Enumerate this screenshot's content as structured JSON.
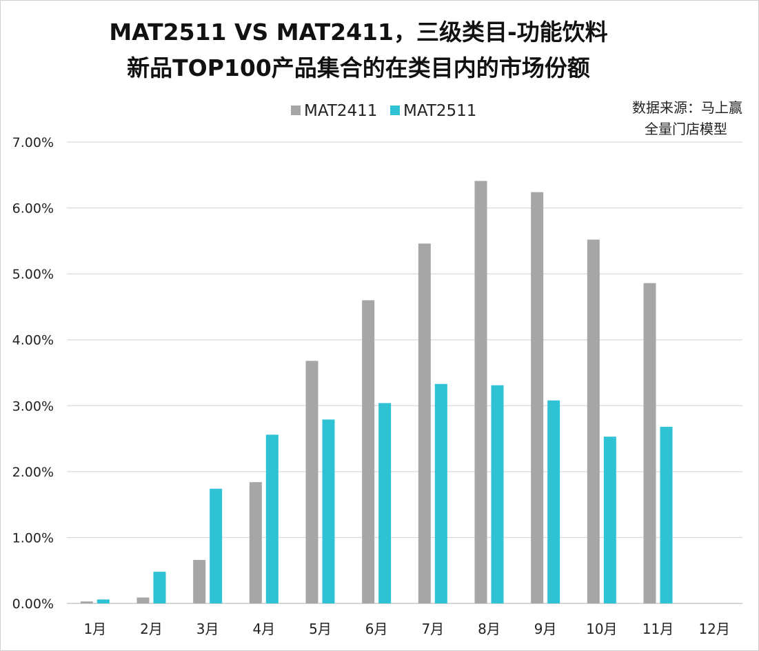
{
  "chart_data": {
    "type": "bar",
    "title_line1": "MAT2511 VS MAT2411，三级类目-功能饮料",
    "title_line2": "新品TOP100产品集合的在类目内的市场份额",
    "source_line1": "数据来源：马上赢",
    "source_line2": "全量门店模型",
    "categories": [
      "1月",
      "2月",
      "3月",
      "4月",
      "5月",
      "6月",
      "7月",
      "8月",
      "9月",
      "10月",
      "11月",
      "12月"
    ],
    "series": [
      {
        "name": "MAT2411",
        "color": "#a6a6a6",
        "values": [
          0.0003,
          0.0009,
          0.0066,
          0.0184,
          0.0368,
          0.046,
          0.0546,
          0.0641,
          0.0624,
          0.0552,
          0.0486,
          null
        ]
      },
      {
        "name": "MAT2511",
        "color": "#2fc1d4",
        "values": [
          0.0006,
          0.0048,
          0.0174,
          0.0256,
          0.0279,
          0.0304,
          0.0333,
          0.0331,
          0.0308,
          0.0253,
          0.0268,
          null
        ]
      }
    ],
    "ylim": [
      0,
      0.07
    ],
    "yticks": [
      "0.00%",
      "1.00%",
      "2.00%",
      "3.00%",
      "4.00%",
      "5.00%",
      "6.00%",
      "7.00%"
    ],
    "grid": true,
    "legend_position": "top-center"
  }
}
